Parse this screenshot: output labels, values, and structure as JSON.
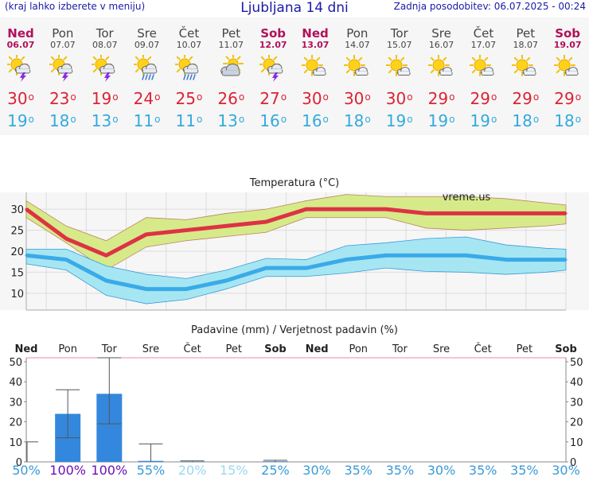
{
  "header": {
    "left_note": "(kraj lahko izberete v meniju)",
    "title": "Ljubljana 14 dni",
    "updated": "Zadnja posodobitev: 06.07.2025 - 00:24"
  },
  "days": [
    {
      "name": "Ned",
      "date": "06.07",
      "weekend": true,
      "icon": "sun-cloud-thunder-icon",
      "tmax": "30",
      "tmin": "19"
    },
    {
      "name": "Pon",
      "date": "07.07",
      "weekend": false,
      "icon": "sun-cloud-thunder-icon",
      "tmax": "23",
      "tmin": "18"
    },
    {
      "name": "Tor",
      "date": "08.07",
      "weekend": false,
      "icon": "sun-cloud-thunder-icon",
      "tmax": "19",
      "tmin": "13"
    },
    {
      "name": "Sre",
      "date": "09.07",
      "weekend": false,
      "icon": "sun-cloud-rain-icon",
      "tmax": "24",
      "tmin": "11"
    },
    {
      "name": "Čet",
      "date": "10.07",
      "weekend": false,
      "icon": "sun-cloud-rain-icon",
      "tmax": "25",
      "tmin": "11"
    },
    {
      "name": "Pet",
      "date": "11.07",
      "weekend": false,
      "icon": "cloud-sun-icon",
      "tmax": "26",
      "tmin": "13"
    },
    {
      "name": "Sob",
      "date": "12.07",
      "weekend": true,
      "icon": "sun-cloud-thunder-icon",
      "tmax": "27",
      "tmin": "16"
    },
    {
      "name": "Ned",
      "date": "13.07",
      "weekend": true,
      "icon": "sun-small-cloud-icon",
      "tmax": "30",
      "tmin": "16"
    },
    {
      "name": "Pon",
      "date": "14.07",
      "weekend": false,
      "icon": "sun-small-cloud-icon",
      "tmax": "30",
      "tmin": "18"
    },
    {
      "name": "Tor",
      "date": "15.07",
      "weekend": false,
      "icon": "sun-small-cloud-icon",
      "tmax": "30",
      "tmin": "19"
    },
    {
      "name": "Sre",
      "date": "16.07",
      "weekend": false,
      "icon": "sun-small-cloud-icon",
      "tmax": "29",
      "tmin": "19"
    },
    {
      "name": "Čet",
      "date": "17.07",
      "weekend": false,
      "icon": "sun-small-cloud-icon",
      "tmax": "29",
      "tmin": "19"
    },
    {
      "name": "Pet",
      "date": "18.07",
      "weekend": false,
      "icon": "sun-small-cloud-icon",
      "tmax": "29",
      "tmin": "18"
    },
    {
      "name": "Sob",
      "date": "19.07",
      "weekend": true,
      "icon": "sun-small-cloud-icon",
      "tmax": "29",
      "tmin": "18"
    }
  ],
  "deg_symbol": "o",
  "chart_data": [
    {
      "type": "line",
      "title": "Temperatura (°C)",
      "watermark": "vreme.us",
      "categories": [
        "Ned",
        "Pon",
        "Tor",
        "Sre",
        "Čet",
        "Pet",
        "Sob",
        "Ned",
        "Pon",
        "Tor",
        "Sre",
        "Čet",
        "Pet",
        "Sob"
      ],
      "ylim": [
        6,
        34
      ],
      "yticks": [
        10,
        15,
        20,
        25,
        30
      ],
      "grid": true,
      "x": [
        0,
        1,
        2,
        3,
        4,
        5,
        6,
        7,
        8,
        9,
        10,
        11,
        12,
        13,
        13.5
      ],
      "series": [
        {
          "role": "max",
          "color": "#dd3344",
          "values": [
            30,
            23,
            19,
            24,
            25,
            26,
            27,
            30,
            30,
            30,
            29,
            29,
            29,
            29,
            29
          ],
          "band_low": [
            28,
            22,
            15.5,
            21,
            22.5,
            23.5,
            24.5,
            28,
            28,
            28,
            25.5,
            25,
            25.5,
            26,
            26.5
          ],
          "band_high": [
            32,
            26,
            22.5,
            28,
            27.5,
            29,
            30,
            32,
            33.5,
            33,
            33,
            33,
            32.5,
            31.5,
            31
          ],
          "band_color": "#d6ea8a"
        },
        {
          "role": "min",
          "color": "#3aaae8",
          "values": [
            19,
            18,
            13,
            11,
            11,
            13,
            16,
            16,
            18,
            19,
            19,
            19,
            18,
            18,
            18
          ],
          "band_low": [
            17,
            15.5,
            9.5,
            7.5,
            8.5,
            11,
            14,
            14,
            14.8,
            16,
            15.2,
            15,
            14.5,
            15,
            15.5
          ],
          "band_high": [
            20.5,
            20.5,
            16.5,
            14.5,
            13.5,
            15.5,
            18.3,
            18,
            21.3,
            22,
            23,
            23.4,
            21.5,
            20.7,
            20.5
          ],
          "band_color": "#a6e6f2"
        }
      ]
    },
    {
      "type": "bar",
      "title": "Padavine (mm) / Verjetnost padavin (%)",
      "categories": [
        "Ned",
        "Pon",
        "Tor",
        "Sre",
        "Čet",
        "Pet",
        "Sob",
        "Ned",
        "Pon",
        "Tor",
        "Sre",
        "Čet",
        "Pet",
        "Sob"
      ],
      "weekend": [
        true,
        false,
        false,
        false,
        false,
        false,
        true,
        true,
        false,
        false,
        false,
        false,
        false,
        true
      ],
      "ylim": [
        0,
        52
      ],
      "yticks": [
        0,
        10,
        20,
        30,
        40,
        50
      ],
      "values": [
        0,
        24,
        34,
        0.5,
        0.2,
        0,
        0.3,
        0,
        0,
        0,
        0,
        0,
        0,
        0
      ],
      "err_low": [
        0,
        12,
        19,
        0,
        0,
        0,
        0,
        0,
        0,
        0,
        0,
        0,
        0,
        0
      ],
      "err_high": [
        10,
        36,
        52,
        9,
        0.5,
        0,
        0.8,
        0,
        0,
        0,
        0,
        0,
        0,
        0
      ],
      "probability": [
        "50%",
        "100%",
        "100%",
        "55%",
        "20%",
        "15%",
        "25%",
        "30%",
        "35%",
        "35%",
        "30%",
        "35%",
        "35%",
        "30%"
      ],
      "probability_colors": [
        "#3a9ad8",
        "#6c10b8",
        "#6c10b8",
        "#3a9ad8",
        "#9ad8ee",
        "#9ad8ee",
        "#3a9ad8",
        "#3a9ad8",
        "#3a9ad8",
        "#3a9ad8",
        "#3a9ad8",
        "#3a9ad8",
        "#3a9ad8",
        "#3a9ad8"
      ],
      "bar_color": "#3388dd"
    }
  ]
}
